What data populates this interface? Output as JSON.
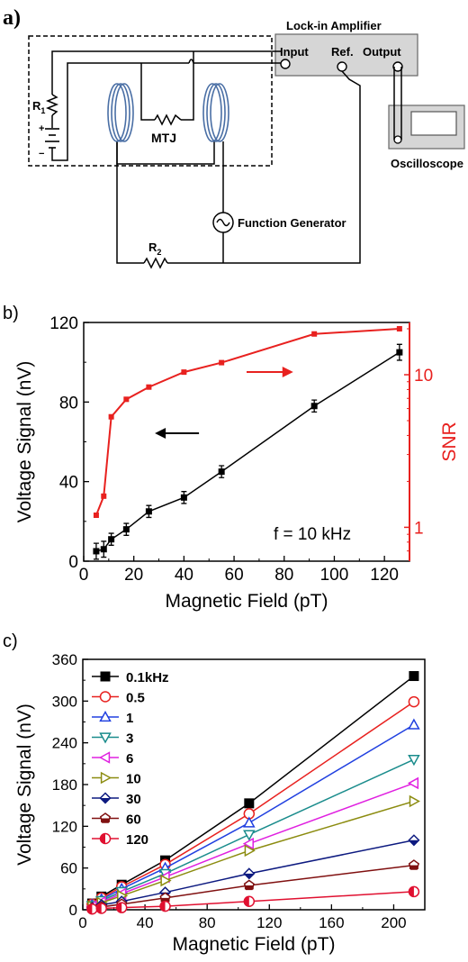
{
  "panel_a": {
    "label": "a)",
    "lockin_title": "Lock-in Amplifier",
    "lockin_input": "Input",
    "lockin_ref": "Ref.",
    "lockin_output": "Output",
    "oscilloscope": "Oscilloscope",
    "mtj": "MTJ",
    "function_generator": "Function Generator",
    "r1": "R",
    "r1_sub": "1",
    "r2": "R",
    "r2_sub": "2",
    "plus": "+",
    "minus": "−"
  },
  "chart_data": [
    {
      "id": "b",
      "panel_label": "b)",
      "type": "line",
      "title": "",
      "xlabel": "Magnetic Field (pT)",
      "ylabel": "Voltage Signal (nV)",
      "ylabel_right": "SNR",
      "annotation": "f = 10 kHz",
      "xlim": [
        0,
        130
      ],
      "ylim": [
        0,
        120
      ],
      "y2lim": [
        0.6,
        22
      ],
      "y2scale": "log",
      "xticks": [
        0,
        20,
        40,
        60,
        80,
        100,
        120
      ],
      "yticks": [
        0,
        40,
        80,
        120
      ],
      "y2ticks": [
        1,
        10
      ],
      "colors": {
        "voltage": "#000000",
        "snr": "#e8211f"
      },
      "series": [
        {
          "axis": "left",
          "x": [
            5,
            8,
            11,
            17,
            26,
            40,
            55,
            92,
            126
          ],
          "values": [
            5,
            6,
            11,
            16,
            25,
            32,
            45,
            78,
            105
          ],
          "errors": [
            4,
            4,
            3,
            3,
            3,
            3,
            3,
            3,
            4
          ]
        },
        {
          "axis": "right",
          "x": [
            5,
            8,
            11,
            17,
            26,
            40,
            55,
            92,
            126
          ],
          "values": [
            1.2,
            1.6,
            5.3,
            6.9,
            8.3,
            10.4,
            12.0,
            18.5,
            20.0
          ]
        }
      ]
    },
    {
      "id": "c",
      "panel_label": "c)",
      "type": "line",
      "title": "",
      "xlabel": "Magnetic Field (pT)",
      "ylabel": "Voltage Signal (nV)",
      "xlim": [
        0,
        220
      ],
      "ylim": [
        0,
        360
      ],
      "xticks": [
        0,
        40,
        80,
        120,
        160,
        200
      ],
      "yticks": [
        0,
        60,
        120,
        180,
        240,
        300,
        360
      ],
      "legend_position": "top-left",
      "x": [
        6,
        12,
        25,
        53,
        107,
        213
      ],
      "series": [
        {
          "name": "0.1kHz",
          "color": "#000000",
          "marker": "square-filled",
          "values": [
            9,
            19,
            36,
            71,
            153,
            336
          ]
        },
        {
          "name": "0.5",
          "color": "#e8211f",
          "marker": "circle-open",
          "values": [
            8,
            17,
            33,
            65,
            138,
            299
          ]
        },
        {
          "name": "1",
          "color": "#2040e0",
          "marker": "triangle-up-open",
          "values": [
            7,
            15,
            30,
            60,
            125,
            266
          ]
        },
        {
          "name": "3",
          "color": "#1a8c8c",
          "marker": "triangle-down-open",
          "values": [
            6,
            13,
            26,
            52,
            108,
            216
          ]
        },
        {
          "name": "6",
          "color": "#e020e0",
          "marker": "triangle-left-open",
          "values": [
            5,
            11,
            23,
            47,
            95,
            182
          ]
        },
        {
          "name": "10",
          "color": "#8c8c10",
          "marker": "triangle-right-open",
          "values": [
            5,
            10,
            20,
            42,
            85,
            156
          ]
        },
        {
          "name": "30",
          "color": "#0d1a80",
          "marker": "diamond-half",
          "values": [
            3,
            7,
            12,
            25,
            52,
            100
          ]
        },
        {
          "name": "60",
          "color": "#801010",
          "marker": "pentagon-half",
          "values": [
            2,
            4,
            8,
            17,
            35,
            64
          ]
        },
        {
          "name": "120",
          "color": "#e01030",
          "marker": "circle-half",
          "values": [
            1,
            2,
            3,
            5,
            12,
            26
          ]
        }
      ]
    }
  ]
}
